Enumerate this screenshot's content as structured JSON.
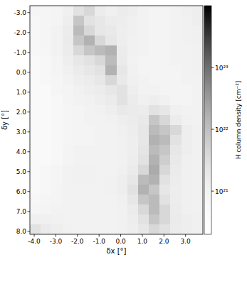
{
  "chart_data": {
    "type": "heatmap",
    "x_label": "δx [°]",
    "y_label": "δy [°]",
    "xlim": [
      -4.2,
      3.8
    ],
    "ylim": [
      8.15,
      -3.35
    ],
    "xticks": [
      {
        "value": -4,
        "label": "-4.0"
      },
      {
        "value": -3,
        "label": "-3.0"
      },
      {
        "value": -2,
        "label": "-2.0"
      },
      {
        "value": -1,
        "label": "-1.0"
      },
      {
        "value": 0,
        "label": "0.0"
      },
      {
        "value": 1,
        "label": "1.0"
      },
      {
        "value": 2,
        "label": "2.0"
      },
      {
        "value": 3,
        "label": "3.0"
      }
    ],
    "yticks": [
      {
        "value": -3,
        "label": "-3.0"
      },
      {
        "value": -2,
        "label": "-2.0"
      },
      {
        "value": -1,
        "label": "-1.0"
      },
      {
        "value": 0,
        "label": "0.0"
      },
      {
        "value": 1,
        "label": "1.0"
      },
      {
        "value": 2,
        "label": "2.0"
      },
      {
        "value": 3,
        "label": "3.0"
      },
      {
        "value": 4,
        "label": "4.0"
      },
      {
        "value": 5,
        "label": "5.0"
      },
      {
        "value": 6,
        "label": "6.0"
      },
      {
        "value": 7,
        "label": "7.0"
      },
      {
        "value": 8,
        "label": "8.0"
      }
    ],
    "color": "#000000",
    "x_bins": [
      -4.2,
      -3.7,
      -3.2,
      -2.7,
      -2.2,
      -1.7,
      -1.2,
      -0.7,
      -0.2,
      0.3,
      0.8,
      1.3,
      1.8,
      2.3,
      2.8,
      3.3,
      3.8
    ],
    "y_bins": [
      -3.35,
      -2.85,
      -2.35,
      -1.85,
      -1.35,
      -0.85,
      -0.35,
      0.15,
      0.65,
      1.15,
      1.65,
      2.15,
      2.65,
      3.15,
      3.65,
      4.15,
      4.65,
      5.15,
      5.65,
      6.15,
      6.65,
      7.15,
      7.65,
      8.15
    ],
    "cells": [
      [
        8e+20,
        8e+20,
        9e+20,
        1.2e+21,
        2.5e+21,
        4e+21,
        1.5e+21,
        1.2e+21,
        1.5e+21,
        1.3e+21,
        1e+21,
        9e+20,
        9e+20,
        1e+21,
        1.2e+21,
        1.3e+21
      ],
      [
        7e+20,
        8e+20,
        9e+20,
        1.3e+21,
        8e+21,
        2.5e+21,
        2e+21,
        1.5e+21,
        1.4e+21,
        1.2e+21,
        1e+21,
        9e+20,
        9e+20,
        1e+21,
        1.1e+21,
        1.3e+21
      ],
      [
        7e+20,
        8e+20,
        1e+21,
        1.5e+21,
        1.2e+22,
        4e+21,
        2e+21,
        1.8e+21,
        1.3e+21,
        1.2e+21,
        1e+21,
        9e+20,
        9e+20,
        1e+21,
        1.1e+21,
        1.2e+21
      ],
      [
        7e+20,
        8e+20,
        1e+21,
        1.6e+21,
        8e+21,
        1.6e+22,
        4e+21,
        2e+21,
        1.3e+21,
        1.1e+21,
        1e+21,
        9e+20,
        9e+20,
        1e+21,
        1.1e+21,
        1.2e+21
      ],
      [
        7e+20,
        8e+20,
        1e+21,
        1.5e+21,
        4e+21,
        8e+21,
        1.2e+22,
        1.6e+22,
        1.5e+21,
        1.1e+21,
        1e+21,
        9e+20,
        9e+20,
        1e+21,
        1e+21,
        1.1e+21
      ],
      [
        6e+20,
        7e+20,
        9e+20,
        1.3e+21,
        2e+21,
        2.5e+21,
        4e+21,
        1.2e+22,
        1.6e+21,
        1e+21,
        9e+20,
        9e+20,
        9e+20,
        1e+21,
        1e+21,
        1.1e+21
      ],
      [
        6e+20,
        7e+20,
        9e+20,
        1.2e+21,
        1.6e+21,
        2e+21,
        2.5e+21,
        1.6e+22,
        2e+21,
        1.1e+21,
        9e+20,
        9e+20,
        9e+20,
        9e+20,
        1e+21,
        1.1e+21
      ],
      [
        6e+20,
        7e+20,
        8e+20,
        1e+21,
        1.3e+21,
        1.5e+21,
        2e+21,
        4e+21,
        1.8e+21,
        1.2e+21,
        1e+21,
        9e+20,
        9e+20,
        9e+20,
        1e+21,
        1e+21
      ],
      [
        6e+20,
        6e+20,
        8e+20,
        9e+20,
        1.1e+21,
        1.3e+21,
        1.5e+21,
        2e+21,
        2.5e+21,
        1.3e+21,
        1e+21,
        1e+21,
        9e+20,
        9e+20,
        9e+20,
        1e+21
      ],
      [
        6e+20,
        6e+20,
        7e+20,
        9e+20,
        1e+21,
        1.1e+21,
        1.3e+21,
        1.6e+21,
        2.5e+21,
        1.5e+21,
        1.2e+21,
        1.3e+21,
        1.1e+21,
        9e+20,
        9e+20,
        1e+21
      ],
      [
        6e+20,
        6e+20,
        7e+20,
        8e+20,
        9e+20,
        1e+21,
        1.1e+21,
        1.3e+21,
        1.8e+21,
        1.6e+21,
        1.5e+21,
        2.5e+21,
        2e+21,
        1.2e+21,
        1e+21,
        1e+21
      ],
      [
        6e+20,
        6e+20,
        7e+20,
        8e+20,
        9e+20,
        1e+21,
        1e+21,
        1.1e+21,
        1.3e+21,
        1.5e+21,
        1.8e+21,
        8e+21,
        4e+21,
        1.5e+21,
        1.1e+21,
        1e+21
      ],
      [
        6e+20,
        6e+20,
        7e+20,
        8e+20,
        9e+20,
        9e+20,
        1e+21,
        1e+21,
        1.2e+21,
        1.4e+21,
        2e+21,
        1.2e+22,
        8e+21,
        4e+21,
        1.3e+21,
        1.1e+21
      ],
      [
        6e+20,
        6e+20,
        7e+20,
        8e+20,
        9e+20,
        9e+20,
        1e+21,
        1e+21,
        1.1e+21,
        1.3e+21,
        2e+21,
        1.6e+22,
        1.2e+22,
        2.5e+21,
        1.3e+21,
        1.1e+21
      ],
      [
        6e+20,
        6e+20,
        7e+20,
        9e+20,
        1e+21,
        1e+21,
        1e+21,
        1e+21,
        1.1e+21,
        1.3e+21,
        2.2e+21,
        1.2e+22,
        8e+21,
        2e+21,
        1.3e+21,
        1.1e+21
      ],
      [
        6e+20,
        6e+20,
        7e+20,
        9e+20,
        1e+21,
        1e+21,
        1e+21,
        1e+21,
        1.1e+21,
        1.4e+21,
        2.5e+21,
        1.6e+22,
        6e+21,
        1.8e+21,
        1.2e+21,
        1.1e+21
      ],
      [
        6e+20,
        7e+20,
        8e+20,
        1e+21,
        1.1e+21,
        1.1e+21,
        1e+21,
        1e+21,
        1.2e+21,
        1.6e+21,
        4e+21,
        2e+22,
        4e+21,
        1.6e+21,
        1.2e+21,
        1.1e+21
      ],
      [
        6e+20,
        7e+20,
        8e+20,
        1e+21,
        1.1e+21,
        1.1e+21,
        1e+21,
        1.1e+21,
        1.3e+21,
        2e+21,
        1.2e+22,
        1.6e+22,
        2.5e+21,
        1.5e+21,
        1.2e+21,
        1.1e+21
      ],
      [
        6e+20,
        7e+20,
        9e+20,
        1e+21,
        1e+21,
        1e+21,
        1e+21,
        1.1e+21,
        1.3e+21,
        2.5e+21,
        1.6e+22,
        8e+21,
        2e+21,
        1.4e+21,
        1.2e+21,
        1.1e+21
      ],
      [
        7e+20,
        8e+20,
        9e+20,
        1e+21,
        1e+21,
        1e+21,
        1e+21,
        1e+21,
        1.2e+21,
        2e+21,
        8e+21,
        1.2e+22,
        2.5e+21,
        1.4e+21,
        1.2e+21,
        1.1e+21
      ],
      [
        8e+20,
        9e+20,
        1e+21,
        1e+21,
        1e+21,
        1e+21,
        1e+21,
        1e+21,
        1.1e+21,
        1.6e+21,
        4e+21,
        1.2e+22,
        4e+21,
        1.5e+21,
        1.2e+21,
        1.1e+21
      ],
      [
        1.2e+21,
        1.2e+21,
        1.1e+21,
        1e+21,
        1e+21,
        1e+21,
        1e+21,
        1e+21,
        1.1e+21,
        1.4e+21,
        2.5e+21,
        8e+21,
        4e+21,
        1.6e+21,
        1.3e+21,
        1.2e+21
      ],
      [
        2.5e+21,
        1.6e+21,
        1.3e+21,
        1.1e+21,
        1e+21,
        1e+21,
        1e+21,
        1e+21,
        1.1e+21,
        1.3e+21,
        2e+21,
        4e+21,
        2.5e+21,
        1.5e+21,
        1.3e+21,
        1.2e+21
      ]
    ],
    "colorbar": {
      "label": "H column density [cm⁻²]",
      "range": [
        2e+20,
        1e+24
      ],
      "log": true,
      "ticks": [
        {
          "value": 1e+21,
          "label": "10²¹"
        },
        {
          "value": 1e+22,
          "label": "10²²"
        },
        {
          "value": 1e+23,
          "label": "10²³"
        }
      ]
    }
  }
}
